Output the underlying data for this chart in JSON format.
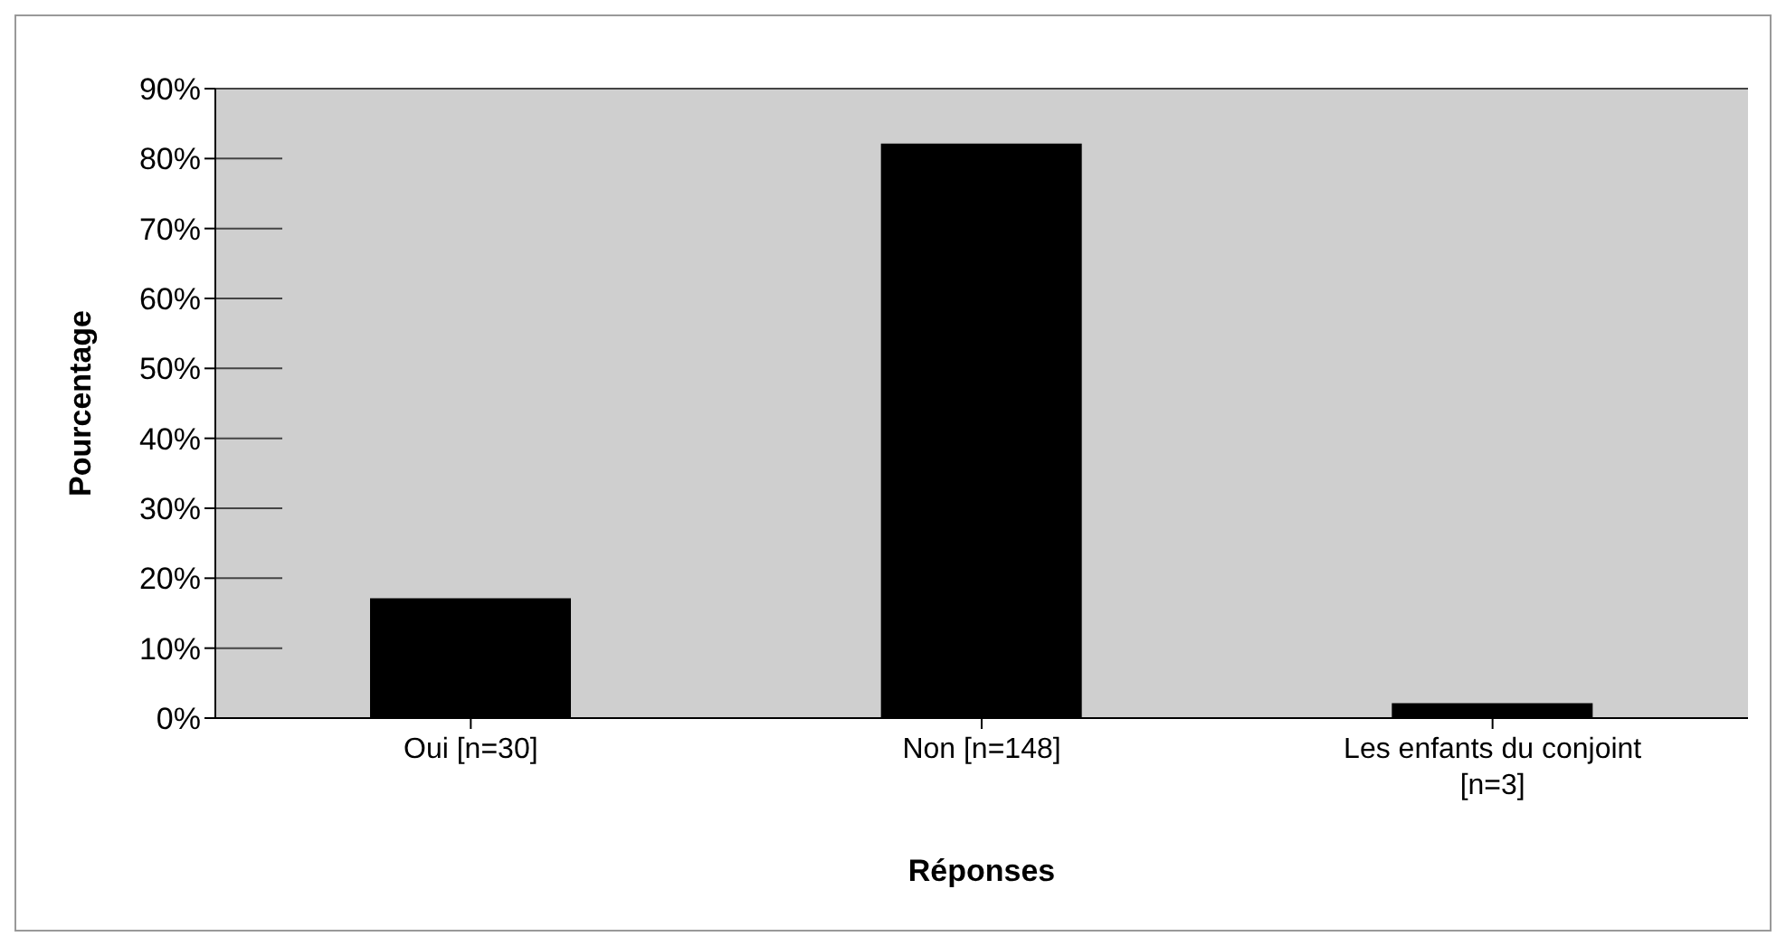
{
  "chart_data": {
    "type": "bar",
    "xlabel": "Réponses",
    "ylabel": "Pourcentage",
    "categories": [
      "Oui [n=30]",
      "Non [n=148]",
      "Les enfants du conjoint [n=3]"
    ],
    "values": [
      17,
      82,
      2
    ],
    "color": "#000000",
    "ylim": [
      0,
      90
    ],
    "yticks": [
      {
        "value": 0,
        "label": "0%"
      },
      {
        "value": 10,
        "label": "10%"
      },
      {
        "value": 20,
        "label": "20%"
      },
      {
        "value": 30,
        "label": "30%"
      },
      {
        "value": 40,
        "label": "40%"
      },
      {
        "value": 50,
        "label": "50%"
      },
      {
        "value": 60,
        "label": "60%"
      },
      {
        "value": 70,
        "label": "70%"
      },
      {
        "value": 80,
        "label": "80%"
      },
      {
        "value": 90,
        "label": "90%"
      }
    ],
    "grid": "y"
  }
}
